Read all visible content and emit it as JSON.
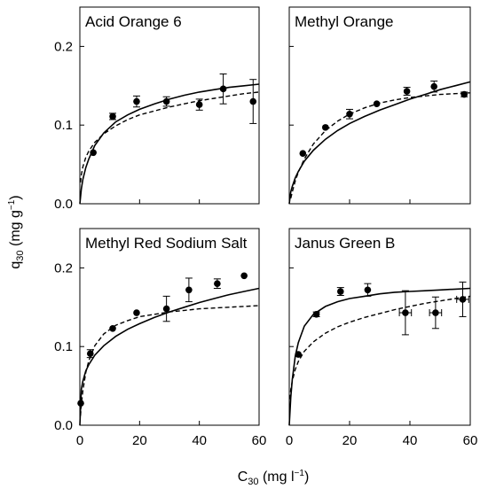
{
  "figure": {
    "ylabel_main": "q",
    "ylabel_sub": "30",
    "ylabel_units": " (mg g",
    "ylabel_sup": "−1",
    "ylabel_close": ")",
    "xlabel_main": "C",
    "xlabel_sub": "30",
    "xlabel_units": " (mg l",
    "xlabel_sup": "−1",
    "xlabel_close": ")"
  },
  "chart_data": [
    {
      "type": "scatter",
      "title": "Acid Orange 6",
      "xlim": [
        0,
        60
      ],
      "ylim": [
        0,
        0.25
      ],
      "x_ticks": [
        "0",
        "20",
        "40",
        "60"
      ],
      "y_ticks": [
        "0.0",
        "0.1",
        "0.2"
      ],
      "x_tick_values": [
        0,
        20,
        40,
        60
      ],
      "y_tick_values": [
        0,
        0.1,
        0.2
      ],
      "show_x_tick_labels": false,
      "show_y_tick_labels": true,
      "points": [
        {
          "x": 4.5,
          "y": 0.065,
          "yerr": 0,
          "xerr": 0
        },
        {
          "x": 11,
          "y": 0.111,
          "yerr": 0.004,
          "xerr": 0
        },
        {
          "x": 19,
          "y": 0.13,
          "yerr": 0.007,
          "xerr": 0
        },
        {
          "x": 29,
          "y": 0.13,
          "yerr": 0.006,
          "xerr": 0
        },
        {
          "x": 40,
          "y": 0.126,
          "yerr": 0.007,
          "xerr": 0
        },
        {
          "x": 48,
          "y": 0.146,
          "yerr": 0.019,
          "xerr": 0
        },
        {
          "x": 58,
          "y": 0.13,
          "yerr": 0.028,
          "xerr": 0
        }
      ],
      "solid_curve": {
        "x": [
          0,
          0.5,
          1,
          2,
          3,
          5,
          8,
          12,
          16,
          20,
          25,
          30,
          35,
          40,
          45,
          50,
          55,
          60
        ],
        "y": [
          0,
          0.019,
          0.031,
          0.046,
          0.057,
          0.074,
          0.09,
          0.104,
          0.113,
          0.12,
          0.127,
          0.133,
          0.138,
          0.142,
          0.145,
          0.148,
          0.15,
          0.152
        ]
      },
      "dashed_curve": {
        "x": [
          0.2,
          0.5,
          1,
          2,
          3,
          5,
          8,
          12,
          16,
          20,
          25,
          30,
          35,
          40,
          45,
          50,
          55,
          60
        ],
        "y": [
          0.027,
          0.037,
          0.047,
          0.059,
          0.067,
          0.078,
          0.089,
          0.099,
          0.107,
          0.113,
          0.118,
          0.123,
          0.127,
          0.131,
          0.134,
          0.137,
          0.14,
          0.142
        ]
      }
    },
    {
      "type": "scatter",
      "title": "Methyl Orange",
      "xlim": [
        0,
        60
      ],
      "ylim": [
        0,
        0.25
      ],
      "x_ticks": [
        "0",
        "20",
        "40",
        "60"
      ],
      "y_ticks": [
        "0.0",
        "0.1",
        "0.2"
      ],
      "x_tick_values": [
        0,
        20,
        40,
        60
      ],
      "y_tick_values": [
        0,
        0.1,
        0.2
      ],
      "show_x_tick_labels": false,
      "show_y_tick_labels": false,
      "points": [
        {
          "x": 4.5,
          "y": 0.064,
          "yerr": 0,
          "xerr": 0
        },
        {
          "x": 12,
          "y": 0.097,
          "yerr": 0,
          "xerr": 0
        },
        {
          "x": 20,
          "y": 0.114,
          "yerr": 0.006,
          "xerr": 0
        },
        {
          "x": 29,
          "y": 0.127,
          "yerr": 0,
          "xerr": 0
        },
        {
          "x": 39,
          "y": 0.143,
          "yerr": 0.005,
          "xerr": 0
        },
        {
          "x": 48,
          "y": 0.149,
          "yerr": 0.007,
          "xerr": 0
        },
        {
          "x": 58,
          "y": 0.139,
          "yerr": 0.003,
          "xerr": 0
        }
      ],
      "solid_curve": {
        "x": [
          0,
          0.5,
          1,
          2,
          3,
          5,
          8,
          12,
          16,
          20,
          25,
          30,
          35,
          40,
          45,
          50,
          55,
          60
        ],
        "y": [
          0,
          0.015,
          0.022,
          0.033,
          0.041,
          0.054,
          0.068,
          0.082,
          0.093,
          0.102,
          0.111,
          0.119,
          0.126,
          0.133,
          0.139,
          0.145,
          0.15,
          0.155
        ]
      },
      "dashed_curve": {
        "x": [
          0.5,
          1,
          2,
          3,
          5,
          8,
          12,
          16,
          20,
          25,
          30,
          35,
          40,
          45,
          50,
          55,
          60
        ],
        "y": [
          0.007,
          0.015,
          0.029,
          0.04,
          0.057,
          0.076,
          0.093,
          0.105,
          0.114,
          0.122,
          0.128,
          0.132,
          0.135,
          0.137,
          0.139,
          0.14,
          0.141
        ]
      }
    },
    {
      "type": "scatter",
      "title": "Methyl Red Sodium Salt",
      "xlim": [
        0,
        60
      ],
      "ylim": [
        0,
        0.25
      ],
      "x_ticks": [
        "0",
        "20",
        "40",
        "60"
      ],
      "y_ticks": [
        "0.0",
        "0.1",
        "0.2"
      ],
      "x_tick_values": [
        0,
        20,
        40,
        60
      ],
      "y_tick_values": [
        0,
        0.1,
        0.2
      ],
      "show_x_tick_labels": true,
      "show_y_tick_labels": true,
      "points": [
        {
          "x": 0.3,
          "y": 0.028,
          "yerr": 0,
          "xerr": 0
        },
        {
          "x": 3.5,
          "y": 0.091,
          "yerr": 0.005,
          "xerr": 0
        },
        {
          "x": 11,
          "y": 0.123,
          "yerr": 0,
          "xerr": 0
        },
        {
          "x": 19,
          "y": 0.143,
          "yerr": 0,
          "xerr": 0
        },
        {
          "x": 29,
          "y": 0.148,
          "yerr": 0.016,
          "xerr": 0
        },
        {
          "x": 36.5,
          "y": 0.172,
          "yerr": 0.015,
          "xerr": 0
        },
        {
          "x": 46,
          "y": 0.18,
          "yerr": 0.006,
          "xerr": 0
        },
        {
          "x": 55,
          "y": 0.19,
          "yerr": 0,
          "xerr": 0
        }
      ],
      "solid_curve": {
        "x": [
          0,
          0.5,
          1,
          2,
          3,
          5,
          8,
          12,
          16,
          20,
          25,
          30,
          35,
          40,
          45,
          50,
          55,
          60
        ],
        "y": [
          0,
          0.046,
          0.056,
          0.069,
          0.077,
          0.089,
          0.101,
          0.113,
          0.122,
          0.129,
          0.137,
          0.144,
          0.15,
          0.156,
          0.161,
          0.166,
          0.17,
          0.174
        ]
      },
      "dashed_curve": {
        "x": [
          0.2,
          0.5,
          1,
          2,
          3,
          5,
          8,
          12,
          16,
          20,
          25,
          30,
          35,
          40,
          45,
          50,
          55,
          60
        ],
        "y": [
          0.012,
          0.026,
          0.044,
          0.067,
          0.082,
          0.101,
          0.116,
          0.127,
          0.133,
          0.138,
          0.141,
          0.144,
          0.146,
          0.148,
          0.149,
          0.15,
          0.151,
          0.152
        ]
      }
    },
    {
      "type": "scatter",
      "title": "Janus Green B",
      "xlim": [
        0,
        60
      ],
      "ylim": [
        0,
        0.25
      ],
      "x_ticks": [
        "0",
        "20",
        "40",
        "60"
      ],
      "y_ticks": [
        "0.0",
        "0.1",
        "0.2"
      ],
      "x_tick_values": [
        0,
        20,
        40,
        60
      ],
      "y_tick_values": [
        0,
        0.1,
        0.2
      ],
      "show_x_tick_labels": true,
      "show_y_tick_labels": false,
      "points": [
        {
          "x": 3,
          "y": 0.09,
          "yerr": 0,
          "xerr": 0
        },
        {
          "x": 9,
          "y": 0.141,
          "yerr": 0.003,
          "xerr": 0
        },
        {
          "x": 17,
          "y": 0.17,
          "yerr": 0.005,
          "xerr": 0
        },
        {
          "x": 26,
          "y": 0.172,
          "yerr": 0.008,
          "xerr": 0
        },
        {
          "x": 38.5,
          "y": 0.143,
          "yerr": 0.028,
          "xerr": 2
        },
        {
          "x": 48.5,
          "y": 0.143,
          "yerr": 0.02,
          "xerr": 2
        },
        {
          "x": 57.5,
          "y": 0.16,
          "yerr": 0.022,
          "xerr": 2
        }
      ],
      "solid_curve": {
        "x": [
          0,
          0.5,
          1,
          2,
          3,
          5,
          8,
          12,
          16,
          20,
          25,
          30,
          35,
          40,
          45,
          50,
          55,
          60
        ],
        "y": [
          0,
          0.035,
          0.058,
          0.088,
          0.105,
          0.126,
          0.141,
          0.151,
          0.157,
          0.161,
          0.164,
          0.167,
          0.169,
          0.17,
          0.171,
          0.172,
          0.173,
          0.174
        ]
      },
      "dashed_curve": {
        "x": [
          0.2,
          0.5,
          1,
          2,
          3,
          5,
          8,
          12,
          16,
          20,
          25,
          30,
          35,
          40,
          45,
          50,
          55,
          60
        ],
        "y": [
          0.033,
          0.045,
          0.056,
          0.071,
          0.081,
          0.094,
          0.106,
          0.117,
          0.125,
          0.131,
          0.137,
          0.142,
          0.147,
          0.151,
          0.155,
          0.158,
          0.161,
          0.164
        ]
      }
    }
  ]
}
